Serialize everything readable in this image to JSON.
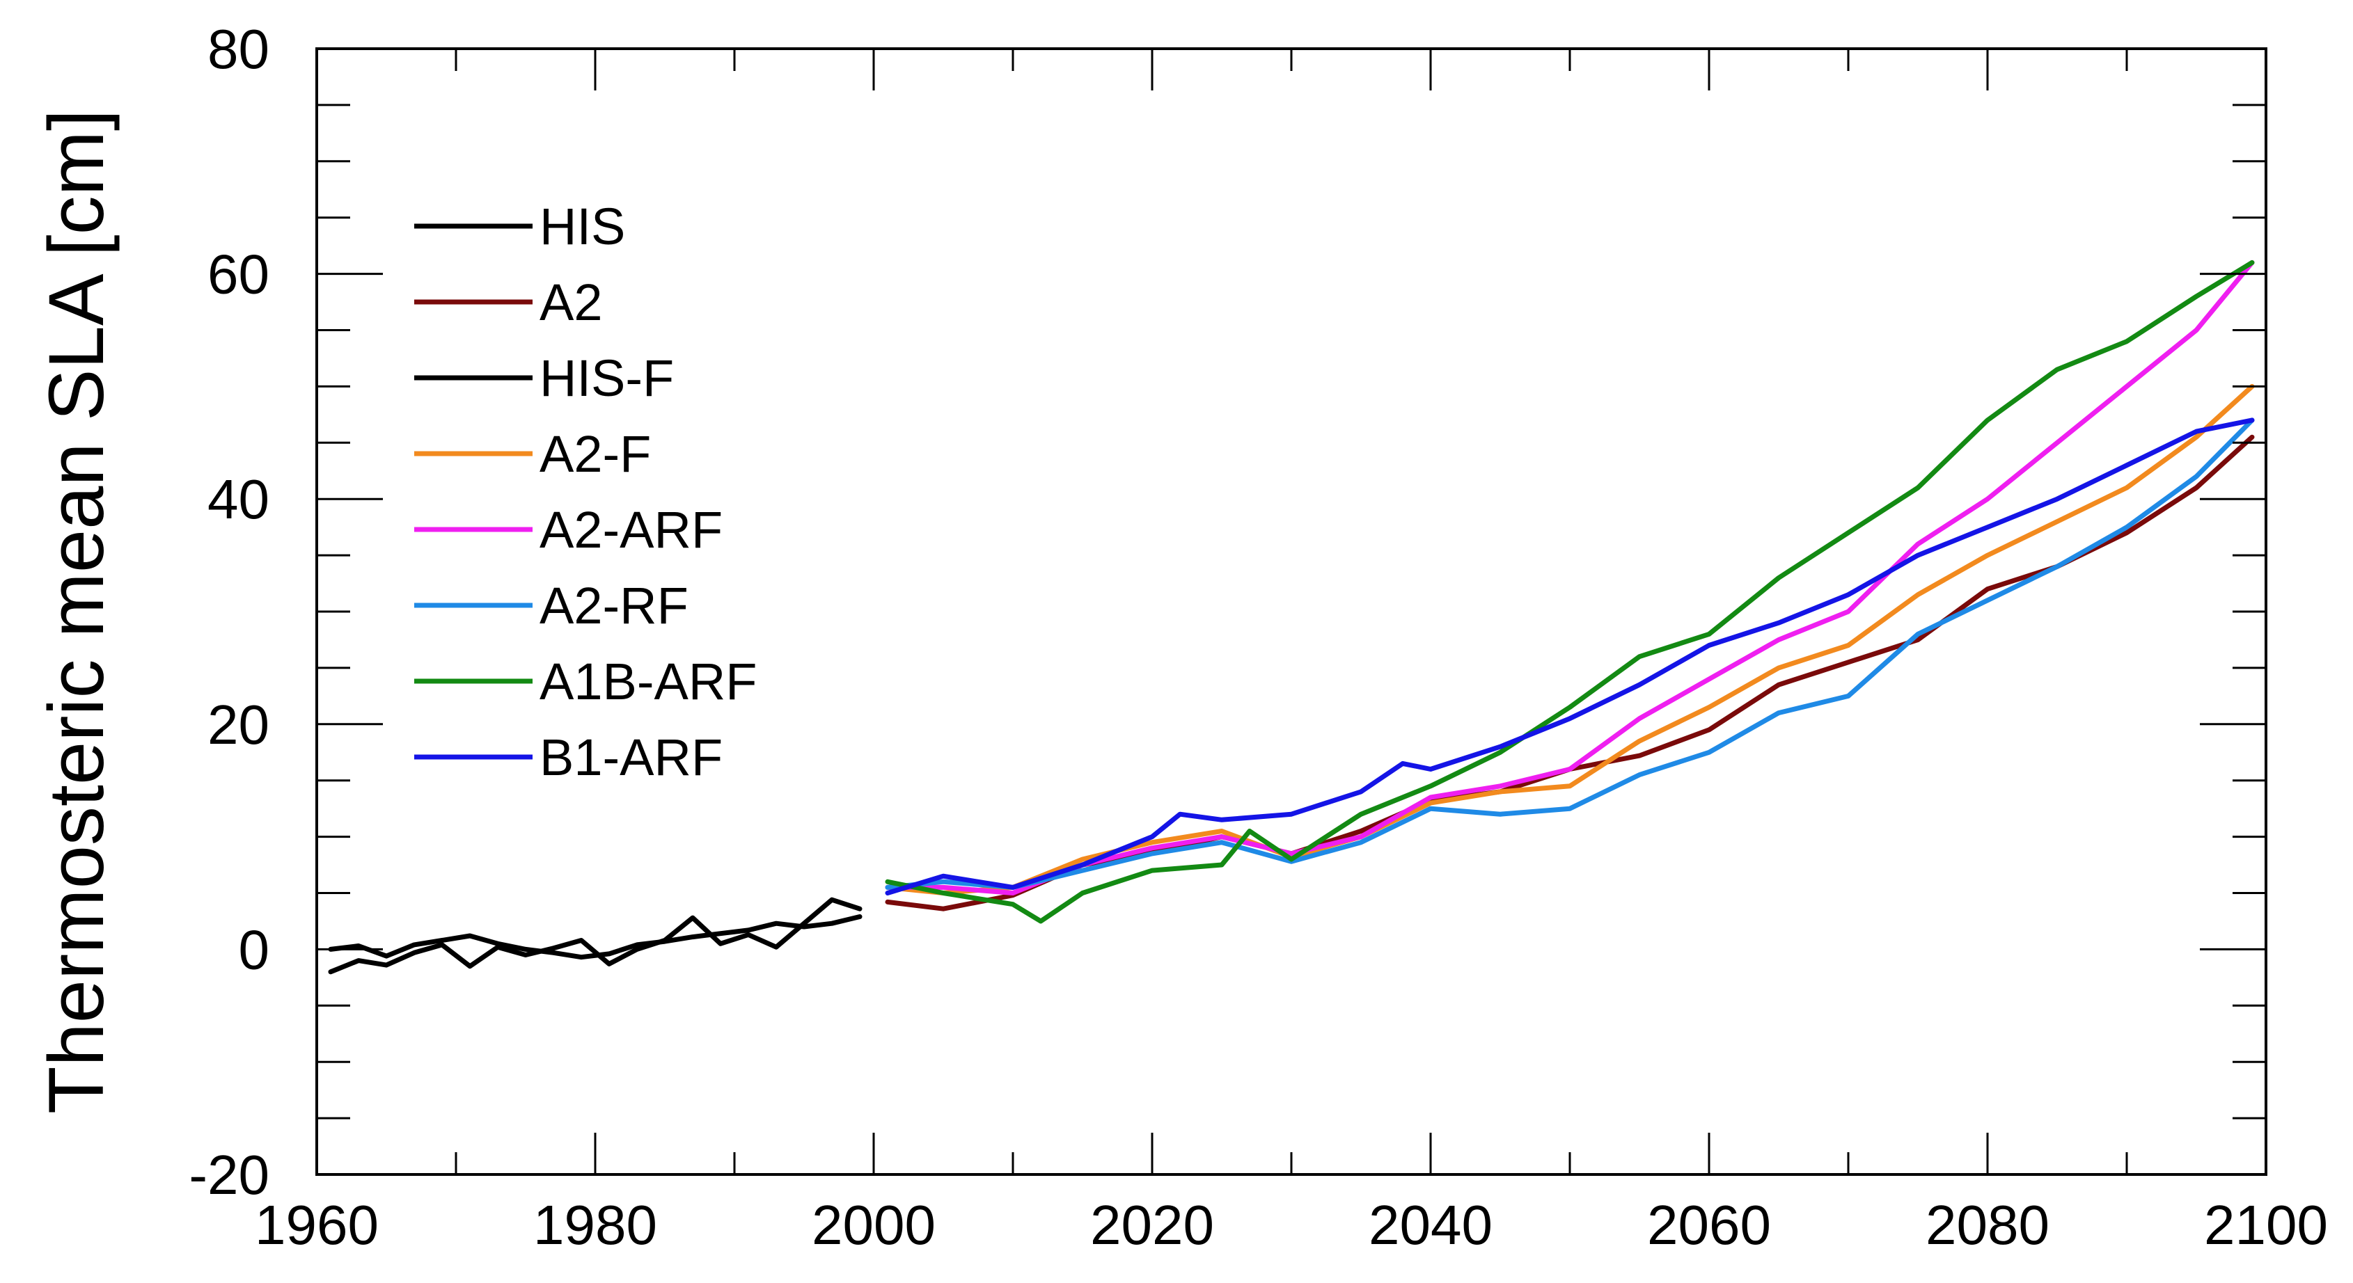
{
  "chart_data": {
    "type": "line",
    "title": "",
    "xlabel": "",
    "ylabel": "Thermosteric mean SLA [cm]",
    "xlim": [
      1960,
      2100
    ],
    "ylim": [
      -20,
      80
    ],
    "xticks": [
      1960,
      1980,
      2000,
      2020,
      2040,
      2060,
      2080,
      2100
    ],
    "xtick_labels": [
      "1960",
      "1980",
      "2000",
      "2020",
      "2040",
      "2060",
      "2080",
      "2100"
    ],
    "yticks": [
      -20,
      0,
      20,
      40,
      60,
      80
    ],
    "ytick_labels": [
      "-20",
      "0",
      "20",
      "40",
      "60",
      "80"
    ],
    "grid": false,
    "legend": {
      "placement": "top-left",
      "entries": [
        "HIS",
        "A2",
        "HIS-F",
        "A2-F",
        "A2-ARF",
        "A2-RF",
        "A1B-ARF",
        "B1-ARF"
      ]
    },
    "series": [
      {
        "name": "HIS",
        "color": "#000000",
        "x": [
          1961,
          1963,
          1965,
          1967,
          1969,
          1971,
          1973,
          1975,
          1977,
          1979,
          1981,
          1983,
          1985,
          1987,
          1989,
          1991,
          1993,
          1995,
          1997,
          1999
        ],
        "y": [
          0.0,
          0.3,
          -0.6,
          0.4,
          0.8,
          1.2,
          0.5,
          0.0,
          -0.3,
          -0.7,
          -0.4,
          0.4,
          0.7,
          1.1,
          1.4,
          1.7,
          2.3,
          2.0,
          2.3,
          2.9
        ]
      },
      {
        "name": "A2",
        "color": "#7a0a0a",
        "x": [
          2001,
          2005,
          2010,
          2015,
          2020,
          2025,
          2030,
          2035,
          2040,
          2045,
          2050,
          2055,
          2060,
          2065,
          2070,
          2075,
          2080,
          2085,
          2090,
          2095,
          2099
        ],
        "y": [
          4.2,
          3.6,
          4.8,
          7.5,
          8.6,
          10.0,
          8.5,
          10.5,
          13.2,
          14.0,
          16.0,
          17.2,
          19.5,
          23.5,
          25.5,
          27.5,
          32.0,
          34.0,
          37.0,
          41.0,
          45.5
        ]
      },
      {
        "name": "HIS-F",
        "color": "#000000",
        "x": [
          1961,
          1963,
          1965,
          1967,
          1969,
          1971,
          1973,
          1975,
          1977,
          1979,
          1981,
          1983,
          1985,
          1987,
          1989,
          1991,
          1993,
          1995,
          1997,
          1999
        ],
        "y": [
          -2.0,
          -1.0,
          -1.4,
          -0.3,
          0.4,
          -1.5,
          0.2,
          -0.5,
          0.1,
          0.8,
          -1.3,
          0.0,
          0.8,
          2.8,
          0.5,
          1.3,
          0.2,
          2.3,
          4.4,
          3.6
        ]
      },
      {
        "name": "A2-F",
        "color": "#f28a1e",
        "x": [
          2001,
          2005,
          2010,
          2015,
          2020,
          2025,
          2030,
          2035,
          2040,
          2045,
          2050,
          2055,
          2060,
          2065,
          2070,
          2075,
          2080,
          2085,
          2090,
          2095,
          2099
        ],
        "y": [
          5.5,
          5.0,
          5.5,
          8.0,
          9.5,
          10.5,
          8.2,
          10.0,
          13.0,
          14.0,
          14.5,
          18.5,
          21.5,
          25.0,
          27.0,
          31.5,
          35.0,
          38.0,
          41.0,
          45.5,
          50.0
        ]
      },
      {
        "name": "A2-ARF",
        "color": "#ef1ff0",
        "x": [
          2001,
          2005,
          2010,
          2015,
          2020,
          2025,
          2030,
          2035,
          2040,
          2045,
          2050,
          2055,
          2060,
          2065,
          2070,
          2075,
          2080,
          2085,
          2090,
          2095,
          2099
        ],
        "y": [
          5.5,
          5.5,
          5.0,
          7.5,
          9.0,
          10.0,
          8.5,
          10.0,
          13.5,
          14.5,
          16.0,
          20.5,
          24.0,
          27.5,
          30.0,
          36.0,
          40.0,
          45.0,
          50.0,
          55.0,
          61.0
        ]
      },
      {
        "name": "A2-RF",
        "color": "#1f8ae6",
        "x": [
          2001,
          2005,
          2010,
          2015,
          2020,
          2025,
          2030,
          2035,
          2040,
          2045,
          2050,
          2055,
          2060,
          2065,
          2070,
          2075,
          2080,
          2085,
          2090,
          2095,
          2099
        ],
        "y": [
          5.5,
          6.0,
          5.5,
          7.0,
          8.5,
          9.5,
          7.8,
          9.5,
          12.5,
          12.0,
          12.5,
          15.5,
          17.5,
          21.0,
          22.5,
          28.0,
          31.0,
          34.0,
          37.5,
          42.0,
          47.0
        ]
      },
      {
        "name": "A1B-ARF",
        "color": "#138a13",
        "x": [
          2001,
          2005,
          2010,
          2012,
          2015,
          2020,
          2025,
          2027,
          2030,
          2035,
          2040,
          2045,
          2050,
          2055,
          2060,
          2065,
          2070,
          2075,
          2080,
          2085,
          2090,
          2095,
          2099
        ],
        "y": [
          6.0,
          5.0,
          4.0,
          2.5,
          5.0,
          7.0,
          7.5,
          10.5,
          8.0,
          12.0,
          14.5,
          17.5,
          21.5,
          26.0,
          28.0,
          33.0,
          37.0,
          41.0,
          47.0,
          51.5,
          54.0,
          58.0,
          61.0
        ]
      },
      {
        "name": "B1-ARF",
        "color": "#1414e6",
        "x": [
          2001,
          2005,
          2010,
          2015,
          2020,
          2022,
          2025,
          2030,
          2035,
          2038,
          2040,
          2045,
          2050,
          2055,
          2060,
          2065,
          2070,
          2075,
          2080,
          2085,
          2090,
          2095,
          2099
        ],
        "y": [
          5.0,
          6.5,
          5.5,
          7.5,
          10.0,
          12.0,
          11.5,
          12.0,
          14.0,
          16.5,
          16.0,
          18.0,
          20.5,
          23.5,
          27.0,
          29.0,
          31.5,
          35.0,
          37.5,
          40.0,
          43.0,
          46.0,
          47.0
        ]
      }
    ]
  }
}
